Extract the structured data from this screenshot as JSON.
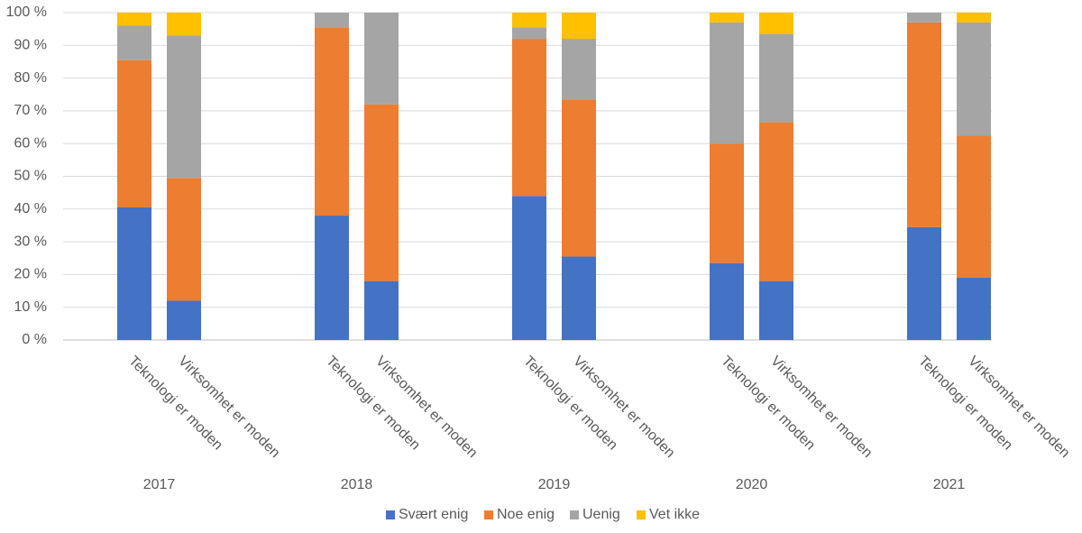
{
  "chart_data": {
    "type": "bar",
    "stacked": true,
    "grid": true,
    "legend": "bottom",
    "categories": [
      "Teknologi er moden",
      "Virksomhet er moden",
      "Teknologi er moden",
      "Virksomhet er moden",
      "Teknologi er moden",
      "Virksomhet er moden",
      "Teknologi er moden",
      "Virksomhet er moden",
      "Teknologi er moden",
      "Virksomhet er moden"
    ],
    "groups": [
      "2017",
      "2018",
      "2019",
      "2020",
      "2021"
    ],
    "ylim": [
      0,
      100
    ],
    "yticks": [
      {
        "value": 0,
        "label": "0 %"
      },
      {
        "value": 10,
        "label": "10 %"
      },
      {
        "value": 20,
        "label": "20 %"
      },
      {
        "value": 30,
        "label": "30 %"
      },
      {
        "value": 40,
        "label": "40 %"
      },
      {
        "value": 50,
        "label": "50 %"
      },
      {
        "value": 60,
        "label": "60 %"
      },
      {
        "value": 70,
        "label": "70 %"
      },
      {
        "value": 80,
        "label": "80 %"
      },
      {
        "value": 90,
        "label": "90 %"
      },
      {
        "value": 100,
        "label": "100 %"
      }
    ],
    "series": [
      {
        "name": "Svært enig",
        "color": "#4472c4",
        "values": [
          40.5,
          12,
          38,
          18,
          44,
          25.5,
          23.5,
          18,
          34.5,
          19
        ]
      },
      {
        "name": "Noe enig",
        "color": "#ed7d31",
        "values": [
          45,
          37.5,
          57.5,
          54,
          48,
          48,
          36.5,
          48.5,
          62.5,
          43.5
        ]
      },
      {
        "name": "Uenig",
        "color": "#a5a5a5",
        "values": [
          10.5,
          43.5,
          4.5,
          28,
          3.5,
          18.5,
          37,
          27,
          3,
          34.5
        ]
      },
      {
        "name": "Vet ikke",
        "color": "#ffc000",
        "values": [
          4,
          7,
          0,
          0,
          4.5,
          8,
          3,
          6.5,
          0,
          3
        ]
      }
    ]
  }
}
